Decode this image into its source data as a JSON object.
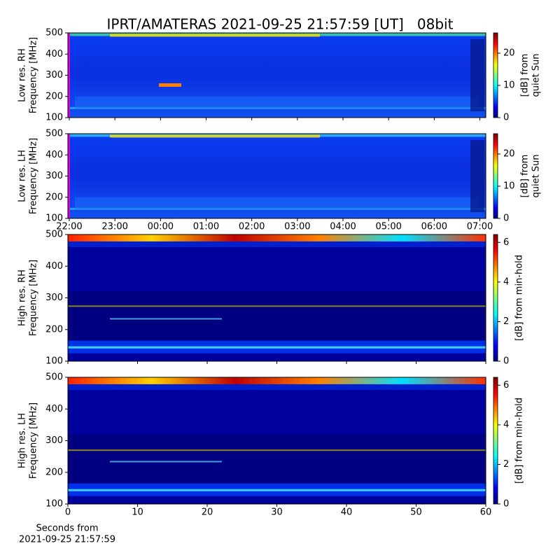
{
  "title": "IPRT/AMATERAS 2021-09-25 21:57:59 [UT]   08bit",
  "chart_data": [
    {
      "type": "spectrogram",
      "ylabel": [
        "Low res. RH",
        "Frequency [MHz]"
      ],
      "ylim": [
        100,
        500
      ],
      "yticks": [
        100,
        200,
        300,
        400,
        500
      ],
      "xlim": [
        21.97,
        31.13
      ],
      "xticks": [
        22,
        23,
        24,
        25,
        26,
        27,
        28,
        29,
        30,
        31
      ],
      "xtick_labels": false,
      "colorbar": {
        "label": [
          "[dB] from",
          "quiet Sun"
        ],
        "lim": [
          0,
          26.3
        ],
        "ticks": [
          0,
          10,
          20
        ]
      }
    },
    {
      "type": "spectrogram",
      "ylabel": [
        "Low res. LH",
        "Frequency [MHz]"
      ],
      "ylim": [
        100,
        500
      ],
      "yticks": [
        100,
        200,
        300,
        400,
        500
      ],
      "xlim": [
        21.97,
        31.13
      ],
      "xticks": [
        {
          "value": 22,
          "label": "22:00"
        },
        {
          "value": 23,
          "label": "23:00"
        },
        {
          "value": 24,
          "label": "00:00"
        },
        {
          "value": 25,
          "label": "01:00"
        },
        {
          "value": 26,
          "label": "02:00"
        },
        {
          "value": 27,
          "label": "03:00"
        },
        {
          "value": 28,
          "label": "04:00"
        },
        {
          "value": 29,
          "label": "05:00"
        },
        {
          "value": 30,
          "label": "06:00"
        },
        {
          "value": 31,
          "label": "07:00"
        }
      ],
      "xtick_labels": true,
      "colorbar": {
        "label": [
          "[dB] from",
          "quiet Sun"
        ],
        "lim": [
          0,
          26.3
        ],
        "ticks": [
          0,
          10,
          20
        ]
      }
    },
    {
      "type": "spectrogram",
      "ylabel": [
        "High res. RH",
        "Frequency [MHz]"
      ],
      "ylim": [
        100,
        500
      ],
      "yticks": [
        100,
        200,
        300,
        400,
        500
      ],
      "xlim": [
        0,
        60
      ],
      "xticks": [
        0,
        10,
        20,
        30,
        40,
        50,
        60
      ],
      "xtick_labels": false,
      "colorbar": {
        "label": [
          "[dB] from min-hold"
        ],
        "lim": [
          0,
          6.4
        ],
        "ticks": [
          0,
          2,
          4,
          6
        ]
      }
    },
    {
      "type": "spectrogram",
      "ylabel": [
        "High res. LH",
        "Frequency [MHz]"
      ],
      "ylim": [
        100,
        500
      ],
      "yticks": [
        100,
        200,
        300,
        400,
        500
      ],
      "xlim": [
        0,
        60
      ],
      "xticks": [
        0,
        10,
        20,
        30,
        40,
        50,
        60
      ],
      "xtick_labels": true,
      "xlabel": [
        "Seconds from",
        "2021-09-25 21:57:59"
      ],
      "colorbar": {
        "label": [
          "[dB] from min-hold"
        ],
        "lim": [
          0,
          6.4
        ],
        "ticks": [
          0,
          2,
          4,
          6
        ]
      }
    }
  ]
}
